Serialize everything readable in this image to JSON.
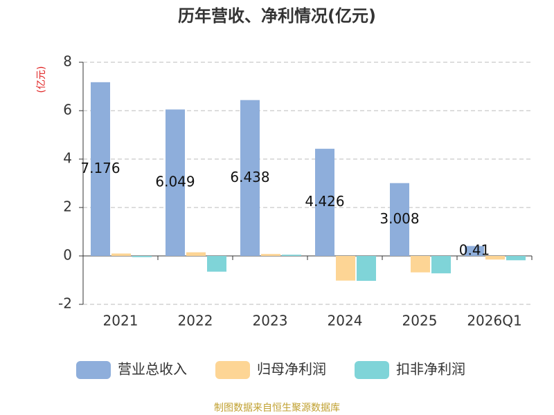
{
  "chart_data": {
    "type": "bar",
    "title": "历年营收、净利情况(亿元)",
    "y_label": "(亿元)",
    "categories": [
      "2021",
      "2022",
      "2023",
      "2024",
      "2025",
      "2026Q1"
    ],
    "series": [
      {
        "name": "营业总收入",
        "color": "#8eaedb",
        "values": [
          7.176,
          6.049,
          6.438,
          4.426,
          3.008,
          0.41
        ],
        "show_labels": true
      },
      {
        "name": "归母净利润",
        "color": "#fdd595",
        "values": [
          0.1,
          0.15,
          0.08,
          -1.02,
          -0.68,
          -0.15
        ]
      },
      {
        "name": "扣非净利润",
        "color": "#7fd4d8",
        "values": [
          -0.05,
          -0.65,
          0.05,
          -1.03,
          -0.72,
          -0.18
        ]
      }
    ],
    "ylim": [
      -2,
      8
    ],
    "yticks": [
      -2,
      0,
      2,
      4,
      6,
      8
    ],
    "grid": true,
    "legend": "bottom",
    "source": "制图数据来自恒生聚源数据库"
  }
}
